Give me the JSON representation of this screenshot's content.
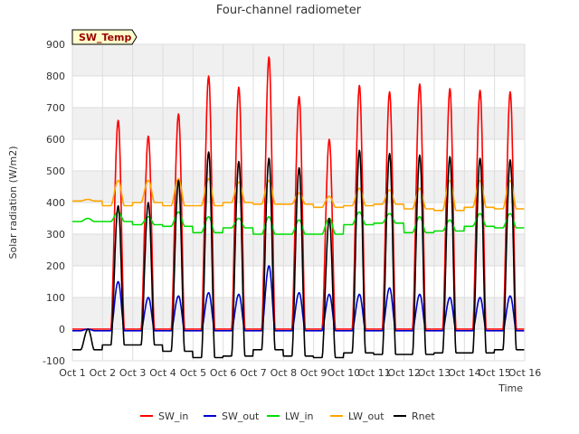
{
  "chart_data": {
    "type": "line",
    "title": "Four-channel radiometer",
    "badge": "SW_Temp",
    "xlabel": "Time",
    "ylabel": "Solar radiation (W/m2)",
    "xlim": [
      1,
      16
    ],
    "ylim": [
      -100,
      900
    ],
    "yticks": [
      -100,
      0,
      100,
      200,
      300,
      400,
      500,
      600,
      700,
      800,
      900
    ],
    "xticks": [
      {
        "v": 1,
        "label": "Oct 1"
      },
      {
        "v": 2,
        "label": "Oct 2"
      },
      {
        "v": 3,
        "label": "Oct 3"
      },
      {
        "v": 4,
        "label": "Oct 4"
      },
      {
        "v": 5,
        "label": "Oct 5"
      },
      {
        "v": 6,
        "label": "Oct 6"
      },
      {
        "v": 7,
        "label": "Oct 7"
      },
      {
        "v": 8,
        "label": "Oct 8"
      },
      {
        "v": 9,
        "label": "Oct 9"
      },
      {
        "v": 10,
        "label": "Oct 10"
      },
      {
        "v": 11,
        "label": "Oct 11"
      },
      {
        "v": 12,
        "label": "Oct 12"
      },
      {
        "v": 13,
        "label": "Oct 13"
      },
      {
        "v": 14,
        "label": "Oct 14"
      },
      {
        "v": 15,
        "label": "Oct 15"
      },
      {
        "v": 16,
        "label": "Oct 16"
      }
    ],
    "grid": true,
    "legend_position": "bottom",
    "days": [
      1,
      2,
      3,
      4,
      5,
      6,
      7,
      8,
      9,
      10,
      11,
      12,
      13,
      14,
      15
    ],
    "series": [
      {
        "name": "SW_in",
        "color": "#ff0000",
        "daily_peak": [
          0,
          660,
          610,
          680,
          800,
          765,
          860,
          735,
          600,
          770,
          750,
          775,
          760,
          755,
          750
        ],
        "night": 0
      },
      {
        "name": "SW_out",
        "color": "#0000cc",
        "daily_peak": [
          0,
          150,
          100,
          105,
          115,
          110,
          200,
          115,
          110,
          110,
          130,
          110,
          100,
          100,
          105
        ],
        "night": -5
      },
      {
        "name": "LW_in",
        "color": "#00dd00",
        "daily_peak": [
          350,
          370,
          355,
          370,
          355,
          350,
          355,
          345,
          350,
          370,
          365,
          355,
          345,
          365,
          365
        ],
        "night": [
          340,
          340,
          330,
          325,
          305,
          320,
          300,
          300,
          300,
          330,
          335,
          305,
          310,
          325,
          320
        ]
      },
      {
        "name": "LW_out",
        "color": "#ffa500",
        "daily_peak": [
          410,
          470,
          470,
          475,
          475,
          465,
          470,
          430,
          420,
          445,
          440,
          445,
          470,
          470,
          470
        ],
        "night": [
          405,
          390,
          400,
          390,
          390,
          400,
          395,
          395,
          385,
          390,
          395,
          380,
          375,
          385,
          380
        ]
      },
      {
        "name": "Rnet",
        "color": "#000000",
        "daily_peak": [
          0,
          390,
          400,
          470,
          560,
          530,
          540,
          510,
          350,
          565,
          555,
          550,
          545,
          540,
          535
        ],
        "night": [
          -65,
          -50,
          -50,
          -70,
          -90,
          -85,
          -65,
          -85,
          -90,
          -75,
          -80,
          -80,
          -75,
          -75,
          -65
        ]
      }
    ]
  }
}
